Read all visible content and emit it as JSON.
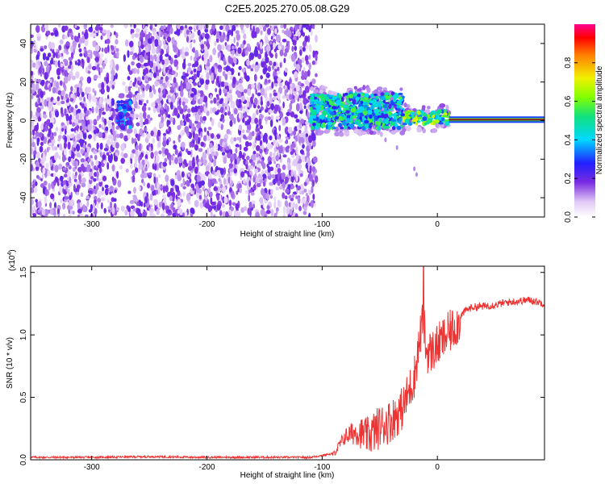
{
  "title": "C2E5.2025.270.05.08.G29",
  "chart_data": [
    {
      "type": "heatmap",
      "name": "spectrogram",
      "xlabel": "Height of straight line (km)",
      "ylabel": "Frequency (Hz)",
      "xlim": [
        -353,
        93
      ],
      "ylim": [
        -50,
        50
      ],
      "xticks": [
        -300,
        -200,
        -100,
        0
      ],
      "yticks": [
        -40,
        -20,
        0,
        20,
        40
      ],
      "colorbar": {
        "label": "Normalized spectral amplitude",
        "range": [
          0.0,
          1.0
        ],
        "ticks": [
          0.0,
          0.2,
          0.4,
          0.6,
          0.8
        ]
      },
      "regions": [
        {
          "x": [
            -353,
            -105
          ],
          "y": [
            -50,
            50
          ],
          "amplitude": 0.1,
          "note": "broadband noise"
        },
        {
          "x": [
            -278,
            -266
          ],
          "y": [
            -4,
            10
          ],
          "amplitude": 0.3
        },
        {
          "x": [
            -110,
            -30
          ],
          "y": [
            -4,
            14
          ],
          "amplitude": 0.45
        },
        {
          "x": [
            -30,
            10
          ],
          "y": [
            -2,
            5
          ],
          "amplitude": 0.55
        },
        {
          "x": [
            10,
            93
          ],
          "y": [
            -1,
            2
          ],
          "amplitude": 0.95,
          "note": "carrier line near 0 Hz"
        }
      ]
    },
    {
      "type": "line",
      "name": "snr",
      "xlabel": "Height of straight line (km)",
      "ylabel": "SNR (10 * v/v)",
      "y_scale_label": "(x10",
      "y_scale_exp": "4",
      "y_scale_close": ")",
      "xlim": [
        -353,
        93
      ],
      "ylim": [
        0,
        1.55
      ],
      "xticks": [
        -300,
        -200,
        -100,
        0
      ],
      "yticks": [
        0.0,
        0.5,
        1.0,
        1.5
      ],
      "series": [
        {
          "name": "SNR",
          "color": "#ee3333",
          "x": [
            -353,
            -300,
            -250,
            -200,
            -150,
            -110,
            -90,
            -80,
            -70,
            -60,
            -50,
            -40,
            -30,
            -20,
            -12,
            -10,
            -5,
            0,
            10,
            20,
            25,
            30,
            40,
            50,
            60,
            70,
            80,
            93
          ],
          "y": [
            0.02,
            0.02,
            0.025,
            0.02,
            0.02,
            0.02,
            0.05,
            0.2,
            0.25,
            0.22,
            0.3,
            0.35,
            0.45,
            0.7,
            1.2,
            0.9,
            0.9,
            0.95,
            1.05,
            1.15,
            1.2,
            1.22,
            1.23,
            1.24,
            1.26,
            1.27,
            1.28,
            1.25
          ]
        }
      ]
    }
  ]
}
